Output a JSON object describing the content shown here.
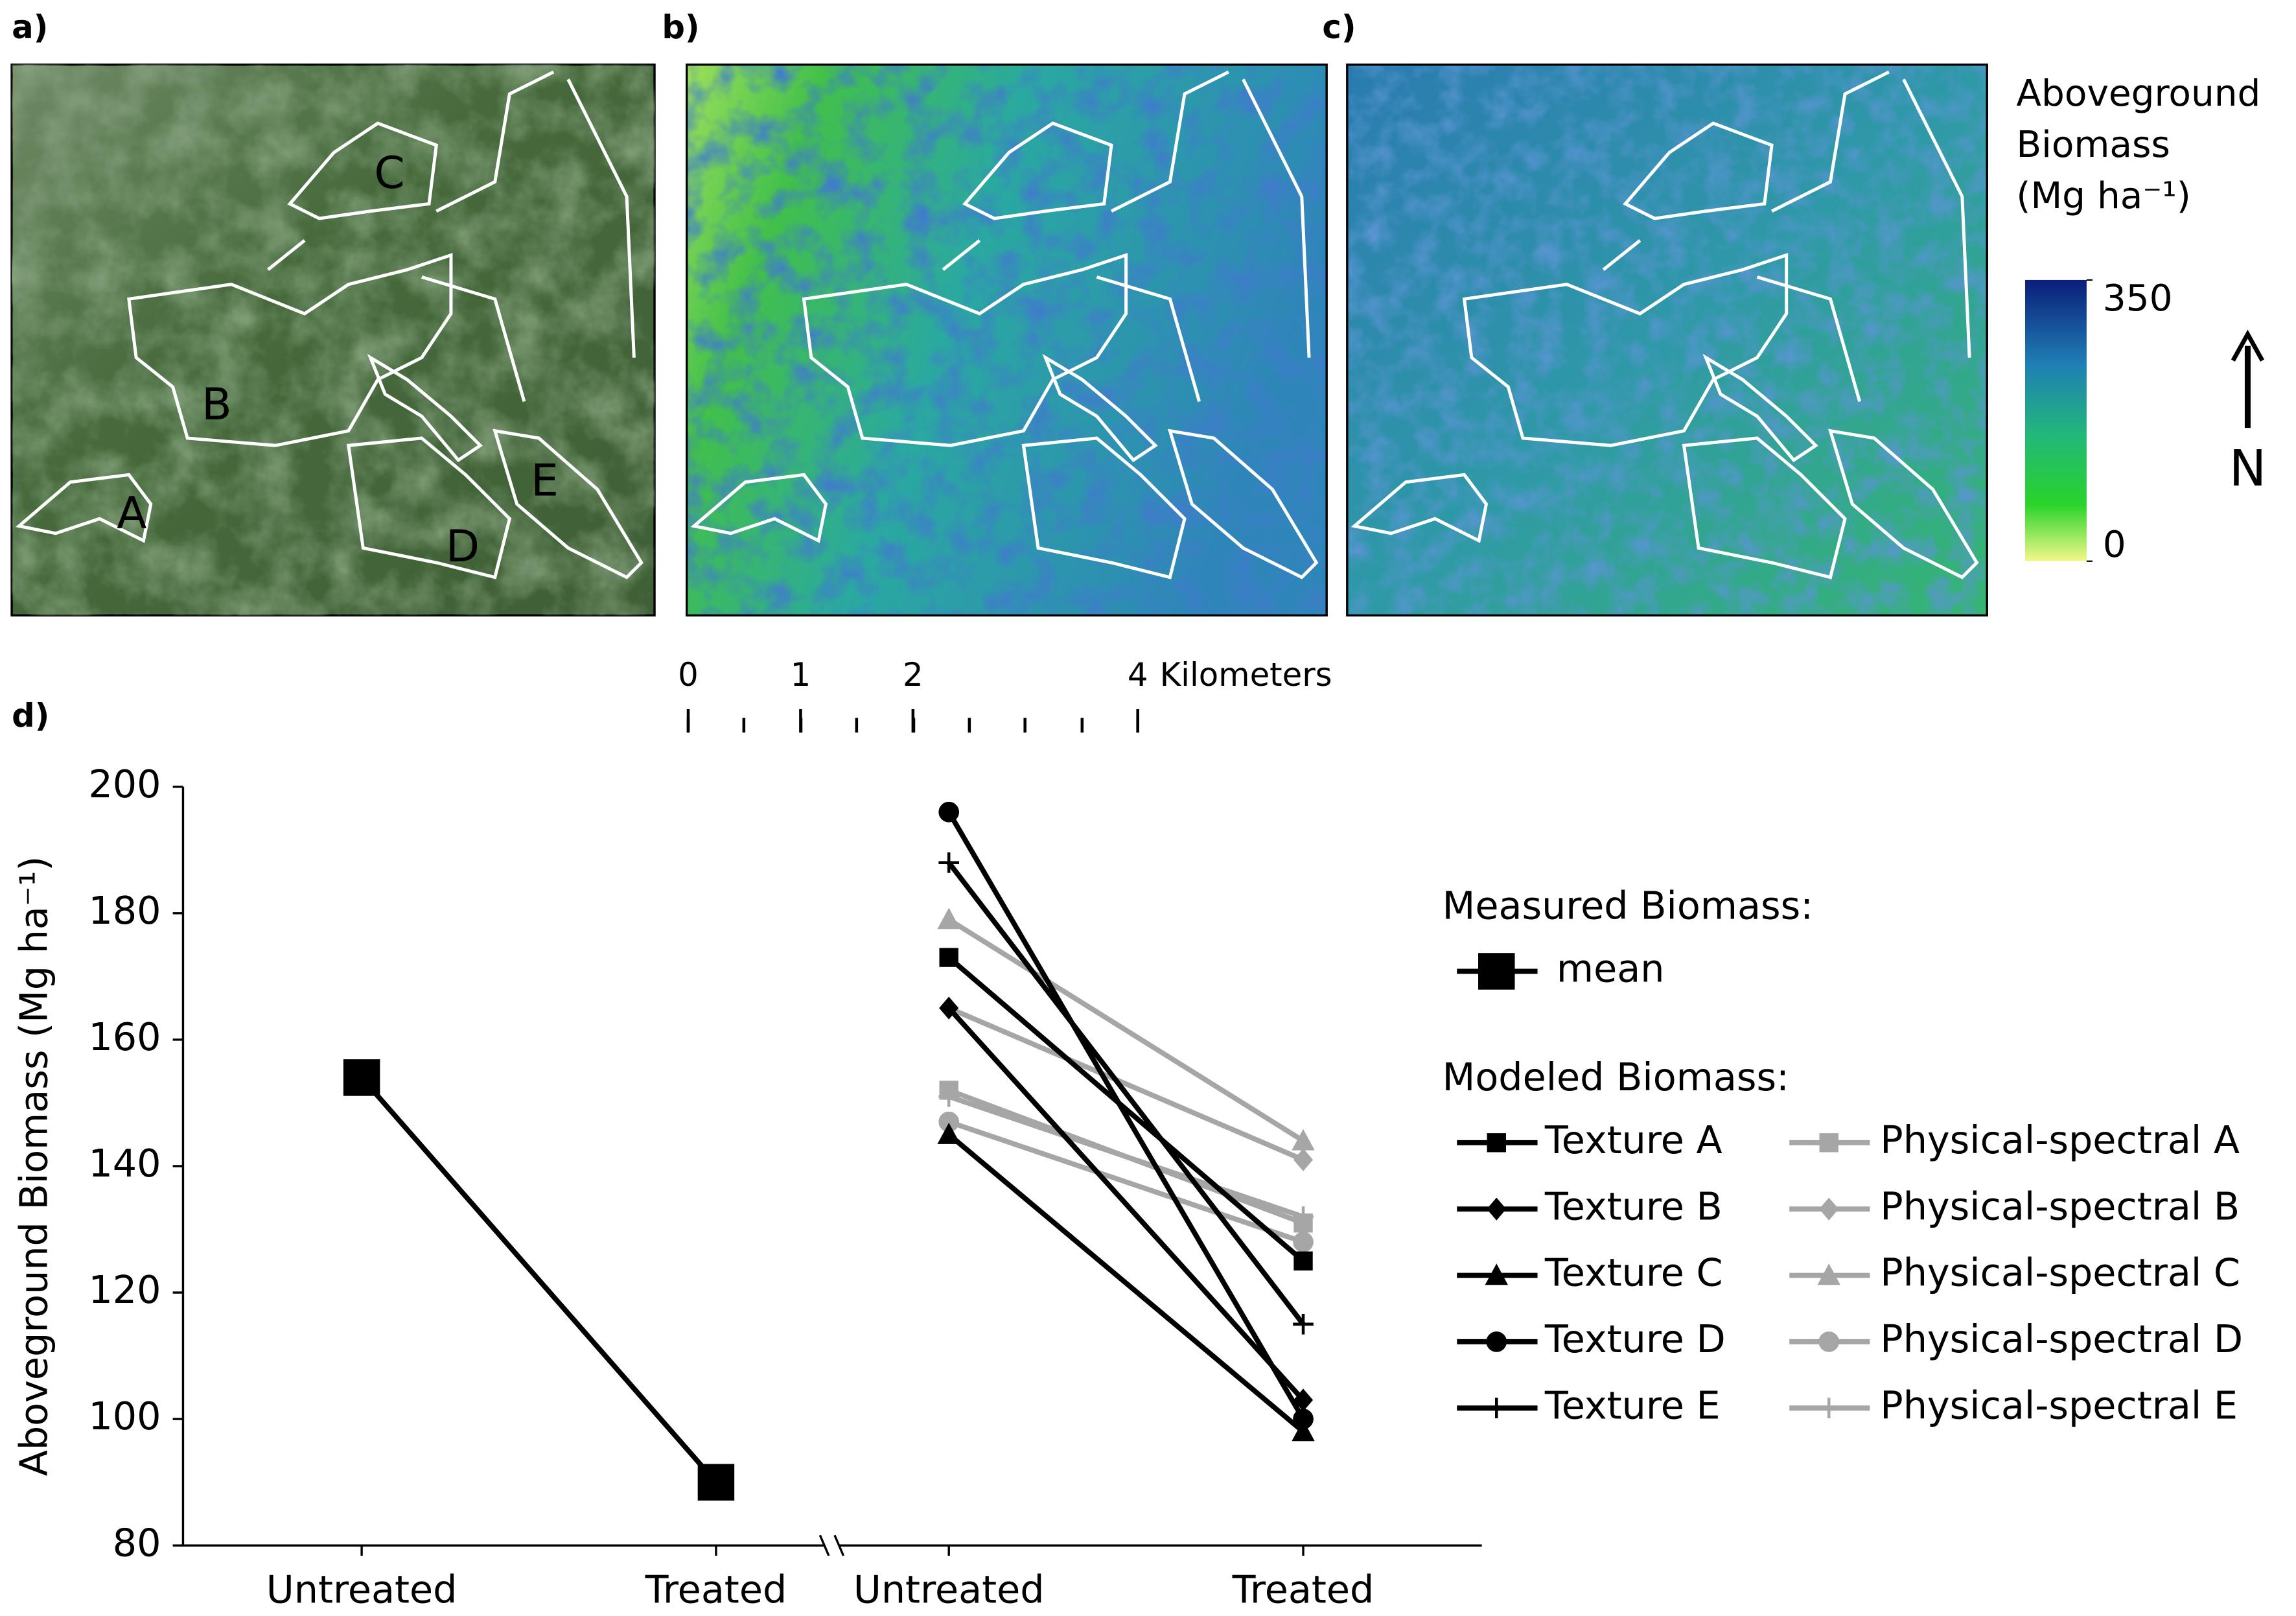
{
  "panel_labels": [
    "a)",
    "b)",
    "c)",
    "d)"
  ],
  "map_labels": [
    "A",
    "B",
    "C",
    "D",
    "E"
  ],
  "colorbar": {
    "title": [
      "Aboveground",
      "Biomass",
      "(Mg ha⁻¹)"
    ],
    "lim": [
      0,
      350
    ],
    "ticks": [
      0,
      350
    ]
  },
  "north": "N",
  "scale_bar": {
    "lim": [
      0,
      4
    ],
    "ticks": [
      0,
      1,
      2,
      4
    ],
    "unit": "Kilometers"
  },
  "chart_data": {
    "type": "line",
    "ylabel": "Aboveground Biomass (Mg ha⁻¹)",
    "categories": [
      "Untreated",
      "Treated",
      "Untreated",
      "Treated"
    ],
    "ylim": [
      80,
      200
    ],
    "yticks": [
      80,
      100,
      120,
      140,
      160,
      180,
      200
    ],
    "legend_headings": [
      "Measured Biomass:",
      "Modeled Biomass:"
    ],
    "series": [
      {
        "name": "mean",
        "color": "#000000",
        "marker": "big-square",
        "legend_group": 0,
        "values": [
          154,
          90,
          null,
          null
        ]
      },
      {
        "name": "Texture A",
        "color": "#000000",
        "marker": "square",
        "legend_group": 1,
        "values": [
          null,
          null,
          173,
          125
        ]
      },
      {
        "name": "Texture B",
        "color": "#000000",
        "marker": "diamond",
        "legend_group": 1,
        "values": [
          null,
          null,
          165,
          103
        ]
      },
      {
        "name": "Texture C",
        "color": "#000000",
        "marker": "triangle",
        "legend_group": 1,
        "values": [
          null,
          null,
          145,
          98
        ]
      },
      {
        "name": "Texture D",
        "color": "#000000",
        "marker": "circle",
        "legend_group": 1,
        "values": [
          null,
          null,
          196,
          100
        ]
      },
      {
        "name": "Texture E",
        "color": "#000000",
        "marker": "plus",
        "legend_group": 1,
        "values": [
          null,
          null,
          188,
          115
        ]
      },
      {
        "name": "Physical-spectral A",
        "color": "#a6a6a6",
        "marker": "square",
        "legend_group": 1,
        "values": [
          null,
          null,
          152,
          131
        ]
      },
      {
        "name": "Physical-spectral B",
        "color": "#a6a6a6",
        "marker": "diamond",
        "legend_group": 1,
        "values": [
          null,
          null,
          165,
          141
        ]
      },
      {
        "name": "Physical-spectral C",
        "color": "#a6a6a6",
        "marker": "triangle",
        "legend_group": 1,
        "values": [
          null,
          null,
          179,
          144
        ]
      },
      {
        "name": "Physical-spectral D",
        "color": "#a6a6a6",
        "marker": "circle",
        "legend_group": 1,
        "values": [
          null,
          null,
          147,
          128
        ]
      },
      {
        "name": "Physical-spectral E",
        "color": "#a6a6a6",
        "marker": "plus",
        "legend_group": 1,
        "values": [
          null,
          null,
          151,
          132
        ]
      }
    ]
  }
}
